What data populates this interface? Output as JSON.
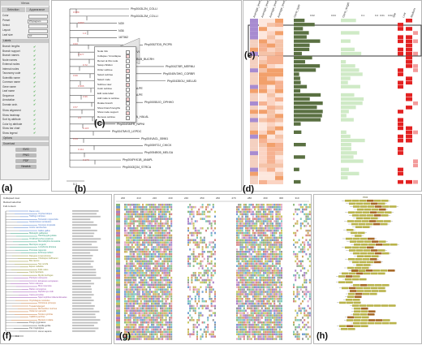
{
  "panels": {
    "a": "(a)",
    "b": "(b)",
    "c": "(c)",
    "d": "(d)",
    "e": "(e)",
    "f": "(f)",
    "g": "(g)",
    "h": "(h)"
  },
  "control_panel": {
    "title": "Views",
    "tabs": [
      "Selection",
      "Appearance"
    ],
    "rows": [
      {
        "label": "Color"
      },
      {
        "label": "Preset",
        "value": "Phylogram"
      },
      {
        "label": "Select"
      },
      {
        "label": "Layout"
      },
      {
        "label": "Leaf size",
        "value": "10"
      }
    ],
    "section_labels": "Labels",
    "checks": [
      {
        "label": "Branch lengths"
      },
      {
        "label": "Branch support"
      },
      {
        "label": "Branch names"
      },
      {
        "label": "Node names"
      },
      {
        "label": "External nodes"
      },
      {
        "label": "Internal nodes"
      },
      {
        "label": "Taxonomy code"
      },
      {
        "label": "Scientific name"
      },
      {
        "label": "Common name"
      },
      {
        "label": "Gene name"
      },
      {
        "label": "Leaf name"
      },
      {
        "label": "Sequence"
      },
      {
        "label": "Annotation"
      },
      {
        "label": "Domain arch."
      }
    ],
    "lower_rows": [
      {
        "label": "Show alignment"
      },
      {
        "label": "Show heatmap"
      },
      {
        "label": "Sort by attribute"
      },
      {
        "label": "Color by attribute"
      },
      {
        "label": "Show bar chart"
      },
      {
        "label": "Show legend"
      }
    ],
    "section_options": "Options",
    "section_download": "Download",
    "buttons": [
      "SVG",
      "PNG",
      "PDF",
      "Newick"
    ]
  },
  "tree_b": {
    "leaves": [
      "Phy0043L2N_COLLI",
      "Phy0043L2M_COLLI",
      "N39",
      "N36",
      "187362",
      "Phy0052TD5_PICPB",
      "Phy0047LAA_APHVI",
      "Phy004LBLB_BUCRH",
      "Phy004278R_MERNU",
      "Phy0045V3HG_CORBR",
      "Phy00435OU_MELUD",
      "N640_FALPE",
      "N640_FALPE",
      "Phy00055JO_OPHHO",
      "Phy0073DP_FALCE",
      "Phy004SKHA_HALAL",
      "Phy004SMFR_NIPNI",
      "Phy0047MVG_LEPDC",
      "Phy004VACL_55961",
      "Phy0059T2J_CHICK",
      "Phy0054B05_MELGA",
      "Phy004FKK1B_ANAPL",
      "Phy0043Q34_STRCA"
    ],
    "support": [
      "0.989",
      "0.993",
      "1.0",
      "0.93",
      "0.977",
      "0.72",
      "0.99",
      "0.996",
      "0.96",
      "0.57",
      "0.5",
      "0.115",
      "0.44",
      "0.111",
      "0.173"
    ],
    "scale_label": "0.1"
  },
  "popup_c": {
    "items": [
      "Node Info",
      "Collapse / Uncollapse",
      "Reroot at this node",
      "Swap children",
      "Order subtree",
      "Select subtree",
      "Select node",
      "Subtree view",
      "Color subtree",
      "Edit node label",
      "Add node to subtree",
      "Rotate branch",
      "Show branch lengths",
      "Show node support",
      "Remove subtree"
    ]
  },
  "heatmap_e": {
    "column_headers": [
      "Average_level_1",
      "Average_level_2",
      "Average_level_3",
      "Average_level_4",
      "Gene_type",
      "Gene_length",
      "Site",
      "Low",
      "Medium"
    ],
    "scale_a": [
      "0.02",
      "0.04"
    ],
    "scale_b": [
      "0.1",
      "0.2"
    ],
    "scale_c": [
      "0.01",
      "0.02"
    ]
  },
  "panel_f": {
    "items": [
      "Collapsed view",
      "Reload selection",
      "Full content"
    ],
    "scale_label": "0.1",
    "leaves": [
      "Danio rerio",
      "Oryzias latipes",
      "Takifugu rubripes",
      "Tetraodon nigroviridis",
      "Gasterosteus aculeatus",
      "Xenopus tropicalis",
      "Anolis carolinensis",
      "Gallus gallus",
      "Meleagris gallopavo",
      "Taeniopygia guttata",
      "Ornithorhynchus anatinus",
      "Monodelphis domestica",
      "Macropus eugenii",
      "Loxodonta africana",
      "Procavia capensis",
      "Echinops telfairi",
      "Dasypus novemcinctus",
      "Choloepus hoffmanni",
      "Bos taurus",
      "Sus scrofa",
      "Equus caballus",
      "Felis catus",
      "Canis familiaris",
      "Myotis lucifugus",
      "Pteropus vampyrus",
      "Erinaceus europaeus",
      "Sorex araneus",
      "Mus musculus",
      "Rattus norvegicus",
      "Dipodomys ordii",
      "Cavia porcellus",
      "Spermophilus tridecemlineatus",
      "Oryctolagus cuniculus",
      "Ochotona princeps",
      "Tupaia belangeri",
      "Microcebus murinus",
      "Otolemur garnettii",
      "Tarsius syrichta",
      "Callithrix jacchus",
      "Macaca mulatta",
      "Pongo pygmaeus",
      "Gorilla gorilla",
      "Pan troglodytes",
      "Homo sapiens"
    ]
  },
  "ruler_g": [
    "200",
    "210",
    "220",
    "230",
    "240",
    "250",
    "260",
    "270",
    "280",
    "290",
    "300",
    "310"
  ],
  "colors": {
    "tree_branch": "#4a4a4a",
    "support_text": "#d05050",
    "heat_purple": "#a78bd0",
    "heat_orange": "#f2a06b",
    "heat_salmon": "#f5c3a8",
    "heat_pale": "#fde7dd",
    "bar_dark": "#5a7042",
    "bar_light": "#cfeac6",
    "accent_red": "#e32222",
    "domain_olive": "#b9b34a",
    "domain_brown": "#a86a28"
  },
  "domains_h": {
    "label": "PF00",
    "rows": [
      6,
      5,
      6,
      4,
      6,
      5,
      3,
      6,
      5,
      2,
      1,
      2,
      1,
      4,
      5,
      6,
      4,
      5,
      5,
      3,
      4,
      4,
      2,
      3,
      2
    ]
  }
}
